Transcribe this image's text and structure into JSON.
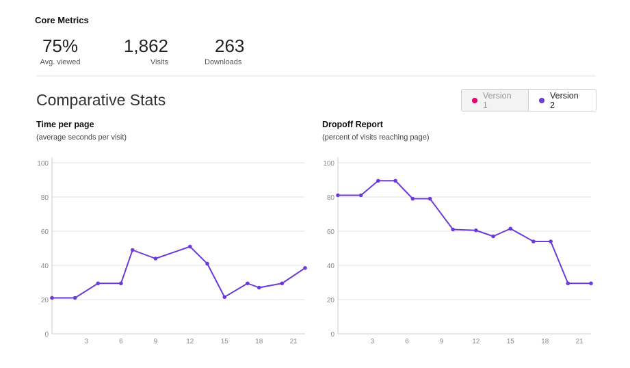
{
  "core_metrics": {
    "title": "Core Metrics",
    "items": [
      {
        "value": "75%",
        "label": "Avg. viewed"
      },
      {
        "value": "1,862",
        "label": "Visits"
      },
      {
        "value": "263",
        "label": "Downloads"
      }
    ]
  },
  "comparative": {
    "title": "Comparative Stats",
    "toggle": [
      {
        "label": "Version 1",
        "color": "#e5006d",
        "active": false
      },
      {
        "label": "Version 2",
        "color": "#6c3bd7",
        "active": true
      }
    ]
  },
  "colors": {
    "series": "#6c3bd7",
    "grid": "#e3e3e3",
    "axis": "#cccccc",
    "tick": "#888888"
  },
  "chart_data": [
    {
      "type": "line",
      "title": "Time per page",
      "subtitle": "(average seconds per visit)",
      "x": [
        0,
        2,
        4,
        6,
        7,
        9,
        12,
        13.5,
        15,
        17,
        18,
        20,
        22
      ],
      "series": [
        {
          "values": [
            21,
            21,
            29.5,
            29.5,
            49,
            44,
            51,
            41,
            21.5,
            29.5,
            27,
            29.5,
            38.5
          ]
        }
      ],
      "xlim": [
        0,
        22
      ],
      "ylim": [
        0,
        100
      ],
      "xticks": [
        3,
        6,
        9,
        12,
        15,
        18,
        21
      ],
      "yticks": [
        0,
        20,
        40,
        60,
        80,
        100
      ],
      "grid": true,
      "legend": "none"
    },
    {
      "type": "line",
      "title": "Dropoff Report",
      "subtitle": "(percent of visits reaching page)",
      "x": [
        0,
        2,
        3.5,
        5,
        6.5,
        8,
        10,
        12,
        13.5,
        15,
        17,
        18.5,
        20,
        22
      ],
      "series": [
        {
          "values": [
            81,
            81,
            89.5,
            89.5,
            79,
            79,
            61,
            60.5,
            57,
            61.5,
            54,
            54,
            29.5,
            29.5
          ]
        }
      ],
      "xlim": [
        0,
        22
      ],
      "ylim": [
        0,
        100
      ],
      "xticks": [
        3,
        6,
        9,
        12,
        15,
        18,
        21
      ],
      "yticks": [
        0,
        20,
        40,
        60,
        80,
        100
      ],
      "grid": true,
      "legend": "none"
    }
  ]
}
